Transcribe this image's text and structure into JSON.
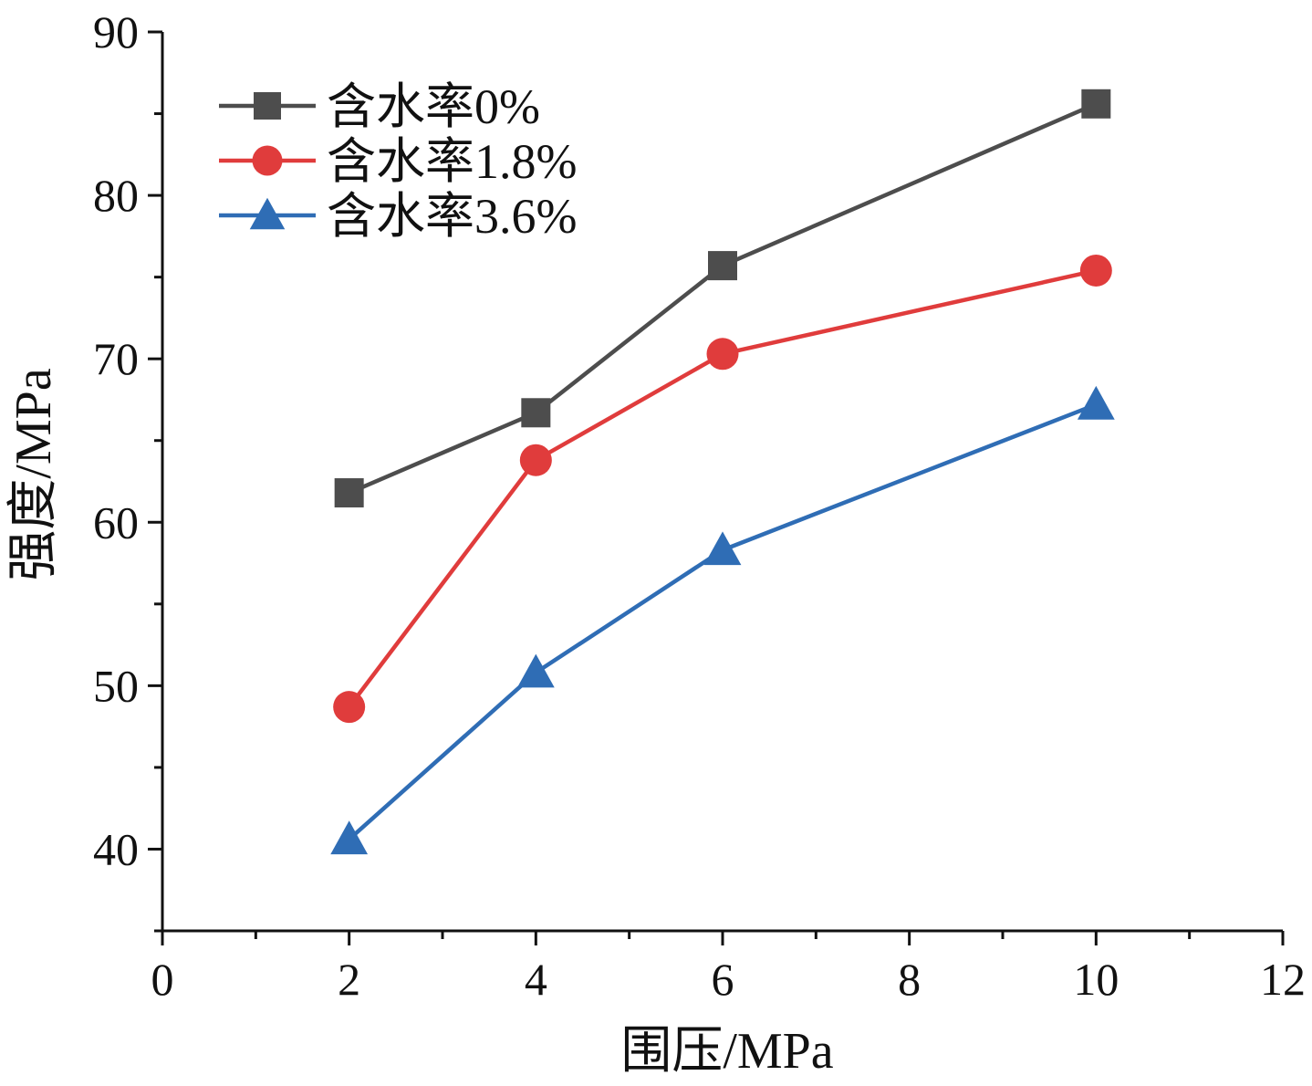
{
  "chart_data": {
    "type": "line",
    "title": "",
    "xlabel": "围压/MPa",
    "ylabel": "强度/MPa",
    "xlim": [
      0,
      12
    ],
    "ylim": [
      35,
      90
    ],
    "xticks": [
      0,
      2,
      4,
      6,
      8,
      10,
      12
    ],
    "yticks": [
      40,
      50,
      60,
      70,
      80,
      90
    ],
    "grid": false,
    "legend_position": "top-left",
    "x": [
      2,
      4,
      6,
      10
    ],
    "series": [
      {
        "name": "含水率0%",
        "values": [
          61.8,
          66.7,
          75.7,
          85.6
        ],
        "color": "#4d4d4d",
        "marker": "square"
      },
      {
        "name": "含水率1.8%",
        "values": [
          48.7,
          63.8,
          70.3,
          75.4
        ],
        "color": "#e03c3c",
        "marker": "circle"
      },
      {
        "name": "含水率3.6%",
        "values": [
          40.6,
          50.8,
          58.3,
          67.2
        ],
        "color": "#2f6db5",
        "marker": "triangle"
      }
    ]
  }
}
